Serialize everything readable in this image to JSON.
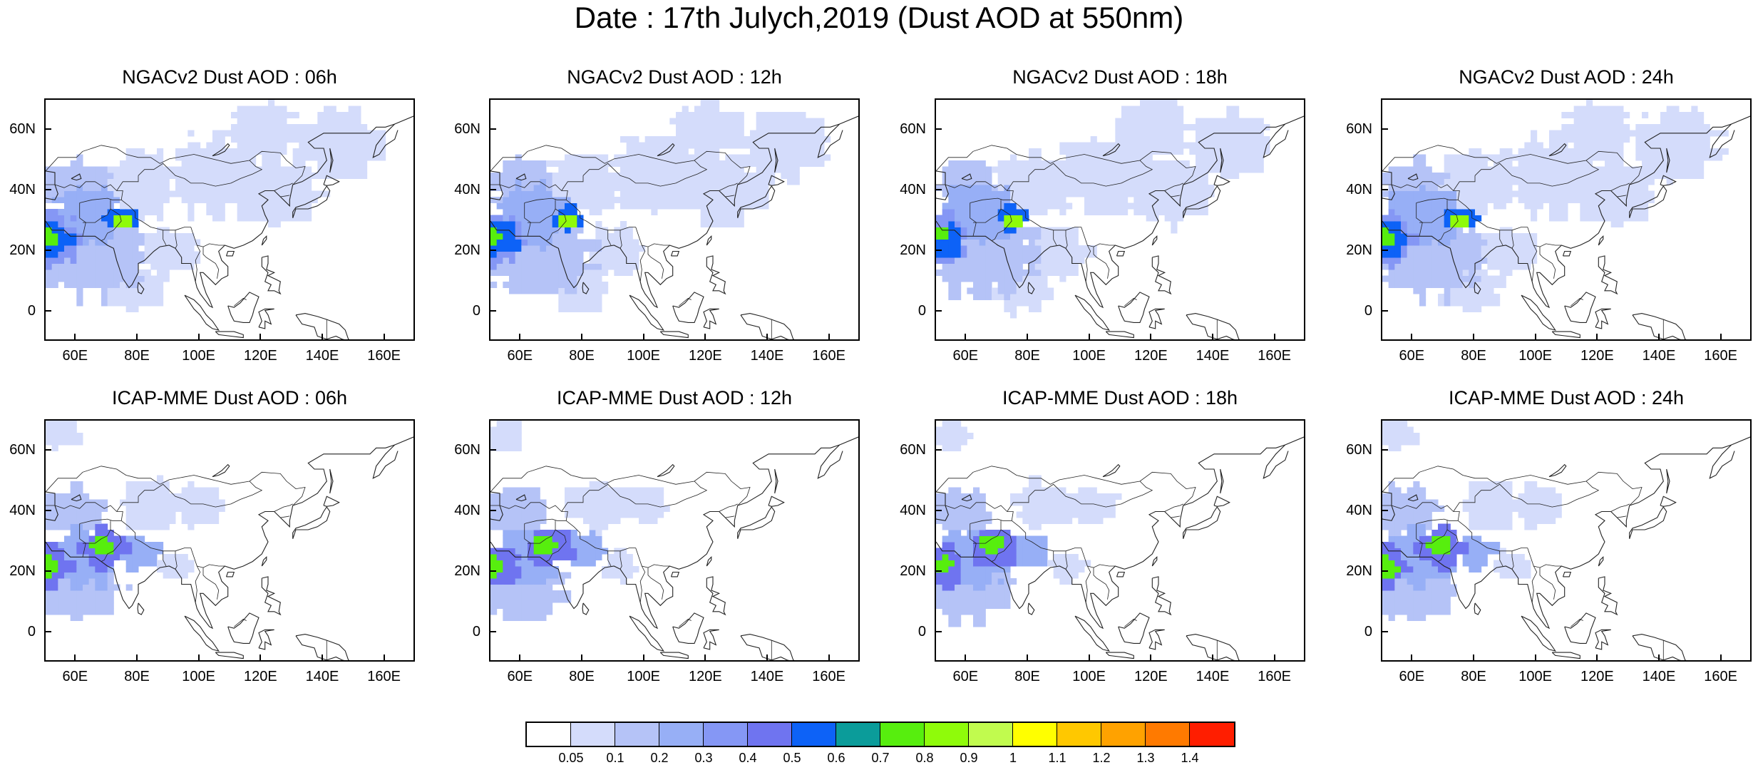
{
  "title": "Date : 17th Julych,2019 (Dust AOD at 550nm)",
  "panels": [
    {
      "title": "NGACv2 Dust AOD : 06h",
      "model": "NGACv2",
      "lead": "06h"
    },
    {
      "title": "NGACv2 Dust AOD : 12h",
      "model": "NGACv2",
      "lead": "12h"
    },
    {
      "title": "NGACv2 Dust AOD : 18h",
      "model": "NGACv2",
      "lead": "18h"
    },
    {
      "title": "NGACv2 Dust AOD : 24h",
      "model": "NGACv2",
      "lead": "24h"
    },
    {
      "title": "ICAP-MME Dust AOD : 06h",
      "model": "ICAP-MME",
      "lead": "06h"
    },
    {
      "title": "ICAP-MME Dust AOD : 12h",
      "model": "ICAP-MME",
      "lead": "12h"
    },
    {
      "title": "ICAP-MME Dust AOD : 18h",
      "model": "ICAP-MME",
      "lead": "18h"
    },
    {
      "title": "ICAP-MME Dust AOD : 24h",
      "model": "ICAP-MME",
      "lead": "24h"
    }
  ],
  "map_extent": {
    "lon": [
      50,
      170
    ],
    "lat": [
      -10,
      70
    ]
  },
  "lat_ticks": [
    {
      "label": "60N",
      "value": 60
    },
    {
      "label": "40N",
      "value": 40
    },
    {
      "label": "20N",
      "value": 20
    },
    {
      "label": "0",
      "value": 0
    }
  ],
  "lon_ticks": [
    {
      "label": "60E",
      "value": 60
    },
    {
      "label": "80E",
      "value": 80
    },
    {
      "label": "100E",
      "value": 100
    },
    {
      "label": "120E",
      "value": 120
    },
    {
      "label": "140E",
      "value": 140
    },
    {
      "label": "160E",
      "value": 160
    }
  ],
  "colorbar": {
    "colors": [
      "#ffffff",
      "#d4dcfb",
      "#b5c3f7",
      "#97aff6",
      "#8597f5",
      "#6f74f0",
      "#0d62f7",
      "#0b9c9a",
      "#57ee0e",
      "#8ffb0a",
      "#c1fb4e",
      "#ffff00",
      "#ffc800",
      "#ffa200",
      "#ff7a00",
      "#ff1e00"
    ],
    "labels": [
      "0.05",
      "0.1",
      "0.2",
      "0.3",
      "0.4",
      "0.5",
      "0.6",
      "0.7",
      "0.8",
      "0.9",
      "1",
      "1.1",
      "1.2",
      "1.3",
      "1.4"
    ]
  }
}
